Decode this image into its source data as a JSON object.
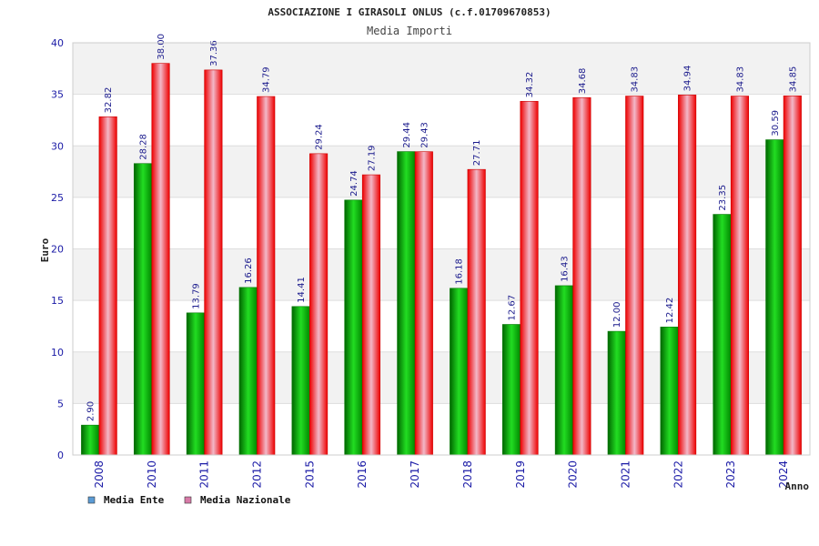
{
  "chart_data": {
    "type": "bar",
    "title": "ASSOCIAZIONE I GIRASOLI ONLUS (c.f.01709670853)",
    "subtitle": "Media Importi",
    "xlabel": "Anno",
    "ylabel": "Euro",
    "ylim": [
      0,
      40
    ],
    "yticks": [
      "0",
      "5",
      "10",
      "15",
      "20",
      "25",
      "30",
      "35",
      "40"
    ],
    "categories": [
      "2008",
      "2010",
      "2011",
      "2012",
      "2015",
      "2016",
      "2017",
      "2018",
      "2019",
      "2020",
      "2021",
      "2022",
      "2023",
      "2024"
    ],
    "series": [
      {
        "name": "Media Ente",
        "color": "#00bb00",
        "legend_color": "#5b9bd5",
        "values": [
          2.9,
          28.28,
          13.79,
          16.26,
          14.41,
          24.74,
          29.44,
          16.18,
          12.67,
          16.43,
          12.0,
          12.42,
          23.35,
          30.59
        ],
        "labels": [
          "2.90",
          "28.28",
          "13.79",
          "16.26",
          "14.41",
          "24.74",
          "29.44",
          "16.18",
          "12.67",
          "16.43",
          "12.00",
          "12.42",
          "23.35",
          "30.59"
        ]
      },
      {
        "name": "Media Nazionale",
        "color": "#ee1111",
        "legend_color": "#d87aa8",
        "values": [
          32.82,
          38.0,
          37.36,
          34.79,
          29.24,
          27.19,
          29.43,
          27.71,
          34.32,
          34.68,
          34.83,
          34.94,
          34.83,
          34.85
        ],
        "labels": [
          "32.82",
          "38.00",
          "37.36",
          "34.79",
          "29.24",
          "27.19",
          "29.43",
          "27.71",
          "34.32",
          "34.68",
          "34.83",
          "34.94",
          "34.83",
          "34.85"
        ]
      }
    ],
    "grid": true,
    "legend_position": "bottom-left"
  }
}
